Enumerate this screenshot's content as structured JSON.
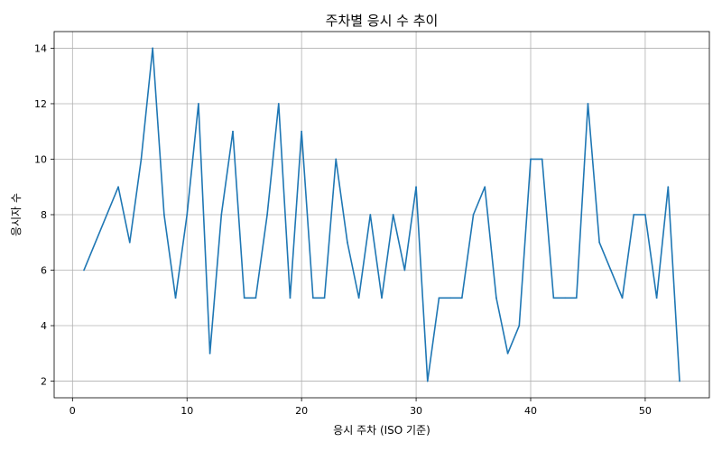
{
  "chart_data": {
    "type": "line",
    "title": "주차별 응시 수 추이",
    "xlabel": "응시 주차 (ISO 기준)",
    "ylabel": "응시자 수",
    "xlim": [
      -1.6,
      55.6
    ],
    "ylim": [
      1.4,
      14.6
    ],
    "xticks": [
      0,
      10,
      20,
      30,
      40,
      50
    ],
    "yticks": [
      2,
      4,
      6,
      8,
      10,
      12,
      14
    ],
    "grid": true,
    "series": [
      {
        "color": "#1f77b4",
        "x": [
          1,
          4,
          5,
          6,
          7,
          8,
          9,
          10,
          11,
          12,
          13,
          14,
          15,
          16,
          17,
          18,
          19,
          20,
          21,
          22,
          23,
          24,
          25,
          26,
          27,
          28,
          29,
          30,
          31,
          32,
          33,
          34,
          35,
          36,
          37,
          38,
          39,
          40,
          41,
          42,
          43,
          44,
          45,
          46,
          47,
          48,
          49,
          50,
          51,
          52,
          53
        ],
        "y": [
          6,
          9,
          7,
          10,
          14,
          8,
          5,
          8,
          12,
          3,
          8,
          11,
          5,
          5,
          8,
          12,
          5,
          11,
          5,
          5,
          10,
          7,
          5,
          8,
          5,
          8,
          6,
          9,
          2,
          5,
          5,
          5,
          8,
          9,
          5,
          3,
          4,
          10,
          10,
          5,
          5,
          5,
          12,
          7,
          6,
          5,
          8,
          8,
          5,
          9,
          2
        ]
      }
    ]
  }
}
